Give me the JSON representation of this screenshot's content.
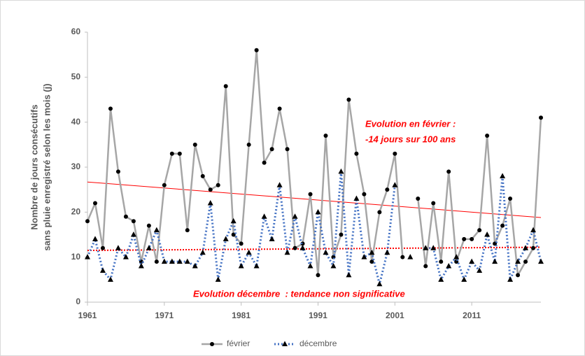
{
  "chart_data": {
    "type": "line",
    "y_label": [
      "Nombre de jours consécutifs",
      "sans pluie enregistré selon les mois (j)"
    ],
    "x": [
      1961,
      1962,
      1963,
      1964,
      1965,
      1966,
      1967,
      1968,
      1969,
      1970,
      1971,
      1972,
      1973,
      1974,
      1975,
      1976,
      1977,
      1978,
      1979,
      1980,
      1981,
      1982,
      1983,
      1984,
      1985,
      1986,
      1987,
      1988,
      1989,
      1990,
      1991,
      1992,
      1993,
      1994,
      1995,
      1996,
      1997,
      1998,
      1999,
      2000,
      2001,
      2002,
      2003,
      2004,
      2005,
      2006,
      2007,
      2008,
      2009,
      2010,
      2011,
      2012,
      2013,
      2014,
      2015,
      2016,
      2017,
      2018,
      2019,
      2020
    ],
    "series": [
      {
        "name": "février",
        "color": "#a6a6a6",
        "marker": "circle",
        "dash": false,
        "values": [
          18,
          22,
          12,
          43,
          29,
          19,
          18,
          9,
          17,
          9,
          26,
          33,
          33,
          16,
          35,
          28,
          25,
          26,
          48,
          15,
          13,
          35,
          56,
          31,
          34,
          43,
          34,
          12,
          13,
          24,
          6,
          37,
          10,
          15,
          45,
          33,
          24,
          9,
          20,
          25,
          33,
          10,
          null,
          23,
          8,
          22,
          9,
          29,
          9,
          14,
          14,
          16,
          37,
          13,
          17,
          23,
          6,
          9,
          12,
          41
        ]
      },
      {
        "name": "décembre",
        "color": "#4472c4",
        "marker": "triangle",
        "dash": true,
        "values": [
          10,
          14,
          7,
          5,
          12,
          10,
          15,
          8,
          12,
          16,
          9,
          9,
          9,
          9,
          8,
          11,
          22,
          5,
          14,
          18,
          8,
          11,
          8,
          19,
          14,
          26,
          11,
          19,
          12,
          8,
          20,
          11,
          8,
          29,
          6,
          23,
          10,
          11,
          4,
          11,
          26,
          null,
          10,
          null,
          12,
          12,
          5,
          8,
          10,
          5,
          9,
          7,
          15,
          9,
          28,
          5,
          9,
          12,
          16,
          9
        ]
      }
    ],
    "trend_lines": [
      {
        "color": "#ff0000",
        "dash": false,
        "values": [
          26.7,
          18.8
        ]
      },
      {
        "color": "#ff0000",
        "dash": true,
        "values": [
          11.5,
          12.2
        ]
      }
    ],
    "annotations": [
      "Evolution en février :",
      "-14 jours sur 100 ans",
      "Evolution décembre  : tendance non significative"
    ],
    "xlim": [
      1961,
      2020
    ],
    "xticks": [
      1961,
      1971,
      1981,
      1991,
      2001,
      2011
    ],
    "ylim": [
      0,
      60
    ],
    "yticks": [
      0,
      10,
      20,
      30,
      40,
      50,
      60
    ],
    "grid": false
  }
}
